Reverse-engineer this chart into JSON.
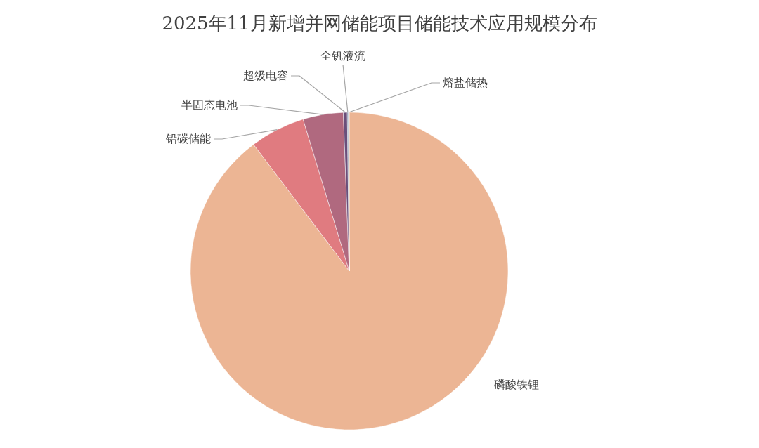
{
  "chart_data": {
    "type": "pie",
    "title": "2025年11月新增并网储能项目储能技术应用规模分布",
    "categories": [
      "磷酸铁锂",
      "铅碳储能",
      "半固态电池",
      "超级电容",
      "全钒液流",
      "熔盐储热"
    ],
    "values": [
      89.7,
      5.6,
      4.1,
      0.4,
      0.1,
      0.1
    ],
    "colors": [
      "#ecb594",
      "#e07b80",
      "#b0697f",
      "#6a4f7a",
      "#5c6a8a",
      "#8c9cb8"
    ]
  }
}
